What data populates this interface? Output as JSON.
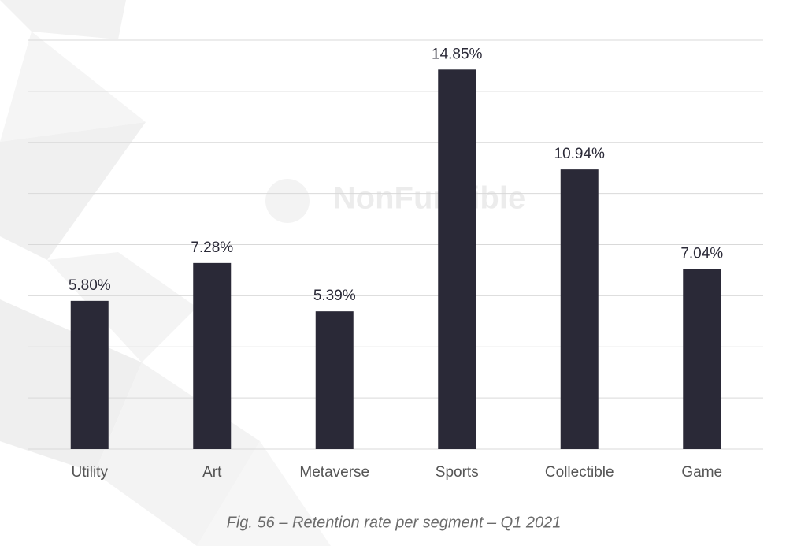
{
  "chart_data": {
    "type": "bar",
    "title": "Fig. 56 – Retention rate per segment – Q1 2021",
    "watermark": "NonFungible",
    "categories": [
      "Utility",
      "Art",
      "Metaverse",
      "Sports",
      "Collectible",
      "Game"
    ],
    "values": [
      5.8,
      7.28,
      5.39,
      14.85,
      10.94,
      7.04
    ],
    "value_labels": [
      "5.80%",
      "7.28%",
      "5.39%",
      "14.85%",
      "10.94%",
      "7.04%"
    ],
    "color": "#2a2937",
    "ylim": [
      0,
      16
    ],
    "yticks": [
      0,
      2,
      4,
      6,
      8,
      10,
      12,
      14,
      16
    ],
    "grid": true
  }
}
